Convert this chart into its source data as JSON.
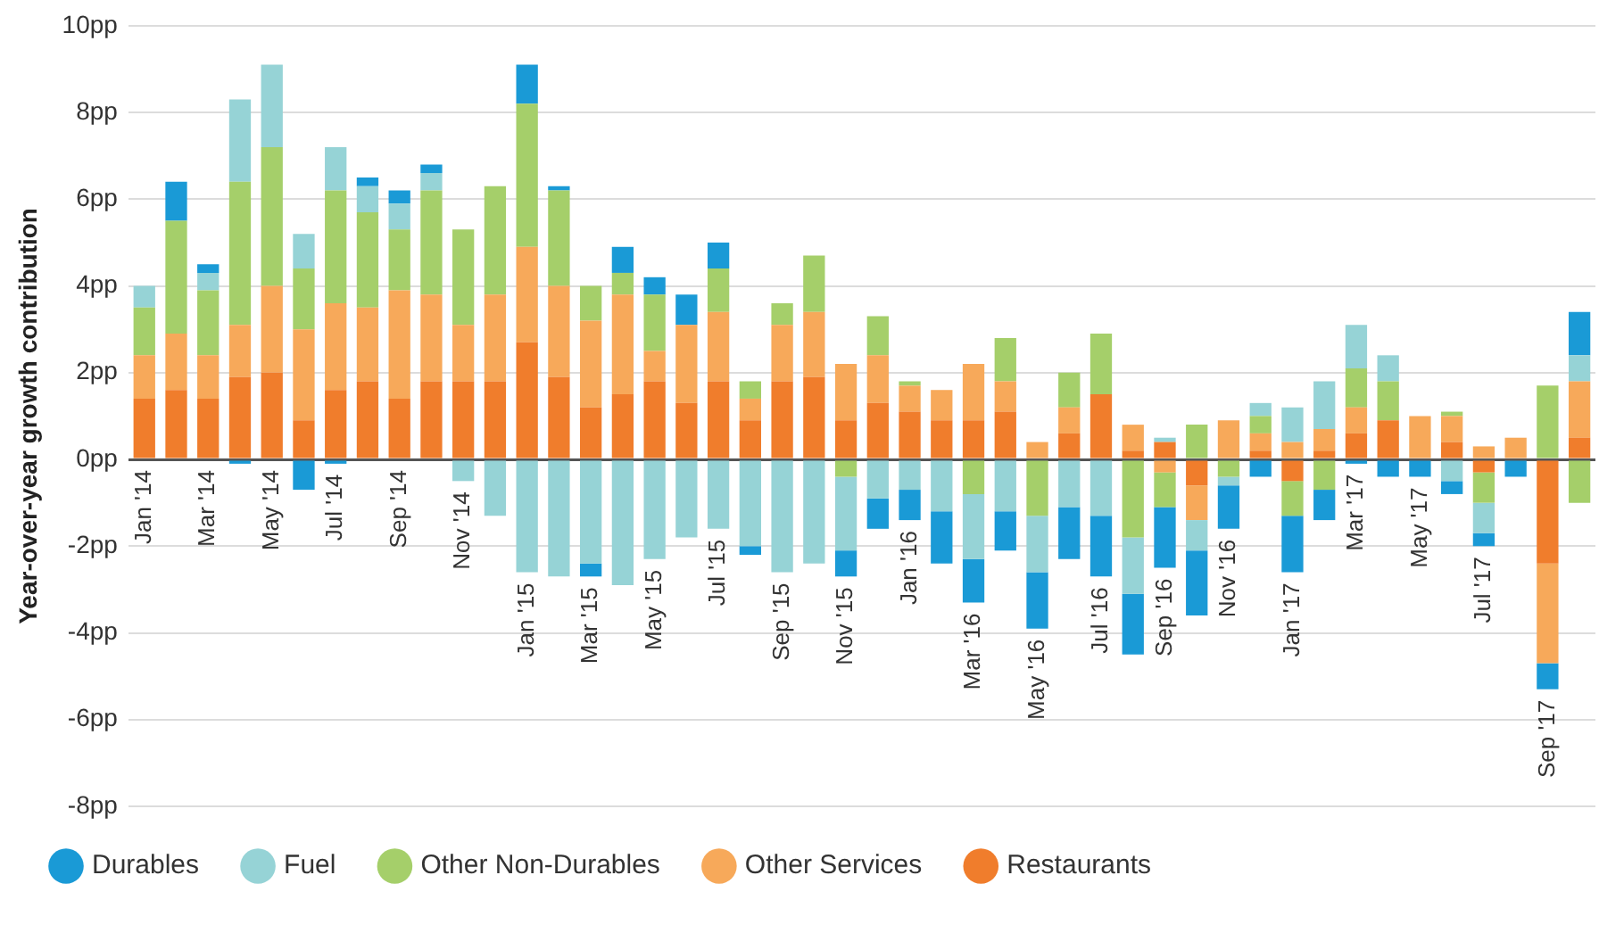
{
  "chart_data": {
    "type": "bar",
    "stacked": true,
    "ylabel": "Year-over-year growth contribution",
    "grid": "y",
    "legend": "bottom",
    "ylim": [
      -8,
      10
    ],
    "yticks": [
      {
        "value": -8,
        "label": "-8pp"
      },
      {
        "value": -6,
        "label": "-6pp"
      },
      {
        "value": -4,
        "label": "-4pp"
      },
      {
        "value": -2,
        "label": "-2pp"
      },
      {
        "value": 0,
        "label": "0pp"
      },
      {
        "value": 2,
        "label": "2pp"
      },
      {
        "value": 4,
        "label": "4pp"
      },
      {
        "value": 6,
        "label": "6pp"
      },
      {
        "value": 8,
        "label": "8pp"
      },
      {
        "value": 10,
        "label": "10pp"
      }
    ],
    "categories": [
      "Jan '14",
      null,
      "Mar '14",
      null,
      "May '14",
      null,
      "Jul '14",
      null,
      "Sep '14",
      null,
      "Nov '14",
      null,
      "Jan '15",
      null,
      "Mar '15",
      null,
      "May '15",
      null,
      "Jul '15",
      null,
      "Sep '15",
      null,
      "Nov '15",
      null,
      "Jan '16",
      null,
      "Mar '16",
      null,
      "May '16",
      null,
      "Jul '16",
      null,
      "Sep '16",
      null,
      "Nov '16",
      null,
      "Jan '17",
      null,
      "Mar '17",
      null,
      "May '17",
      null,
      "Jul '17",
      null,
      "Sep '17",
      null
    ],
    "series": [
      {
        "name": "Restaurants",
        "color": "#f07d2c",
        "values": [
          1.4,
          1.6,
          1.4,
          1.9,
          2.0,
          0.9,
          1.6,
          1.8,
          1.4,
          1.8,
          1.8,
          1.8,
          2.7,
          1.9,
          1.2,
          1.5,
          1.8,
          1.3,
          1.8,
          0.9,
          1.8,
          1.9,
          0.9,
          1.3,
          1.1,
          0.9,
          0.9,
          1.1,
          0,
          0.6,
          1.5,
          0.2,
          0.4,
          -0.6,
          0,
          0.2,
          -0.5,
          0.2,
          0.6,
          0.9,
          0,
          0.4,
          -0.3,
          0,
          -2.4,
          0.5
        ]
      },
      {
        "name": "Other Services",
        "color": "#f7a95a",
        "values": [
          1.0,
          1.3,
          1.0,
          1.2,
          2.0,
          2.1,
          2.0,
          1.7,
          2.5,
          2.0,
          1.3,
          2.0,
          2.2,
          2.1,
          2.0,
          2.3,
          0.7,
          1.8,
          1.6,
          0.5,
          1.3,
          1.5,
          1.3,
          1.1,
          0.6,
          0.7,
          1.3,
          0.7,
          0.4,
          0.6,
          0,
          0.6,
          -0.3,
          -0.8,
          0.9,
          0.4,
          0.4,
          0.5,
          0.6,
          0,
          1.0,
          0.6,
          0.3,
          0.5,
          -2.3,
          1.3
        ]
      },
      {
        "name": "Other Non-Durables",
        "color": "#a5cf6a",
        "values": [
          1.1,
          2.6,
          1.5,
          3.3,
          3.2,
          1.4,
          2.6,
          2.2,
          1.4,
          2.4,
          2.2,
          2.5,
          3.3,
          2.2,
          0.8,
          0.5,
          1.3,
          0,
          1.0,
          0.4,
          0.5,
          1.3,
          -0.4,
          0.9,
          0.1,
          0,
          -0.8,
          1.0,
          -1.3,
          0.8,
          1.4,
          -1.8,
          -0.8,
          0.8,
          -0.4,
          0.4,
          -0.8,
          -0.7,
          0.9,
          0.9,
          0,
          0.1,
          -0.7,
          0,
          1.7,
          -1.0
        ]
      },
      {
        "name": "Fuel",
        "color": "#96d3d6",
        "values": [
          0.5,
          0,
          0.4,
          1.9,
          1.9,
          0.8,
          1.0,
          0.6,
          0.6,
          0.4,
          -0.5,
          -1.3,
          -2.6,
          -2.7,
          -2.4,
          -2.9,
          -2.3,
          -1.8,
          -1.6,
          -2.0,
          -2.6,
          -2.4,
          -1.7,
          -0.9,
          -0.7,
          -1.2,
          -1.5,
          -1.2,
          -1.3,
          -1.1,
          -1.3,
          -1.3,
          0.1,
          -0.7,
          -0.2,
          0.3,
          0.8,
          1.1,
          1.0,
          0.6,
          0,
          -0.5,
          -0.7,
          0,
          0,
          0.6
        ]
      },
      {
        "name": "Durables",
        "color": "#1a9ad6",
        "values": [
          0,
          0.9,
          0.2,
          -0.1,
          0,
          -0.7,
          -0.1,
          0.2,
          0.3,
          0.2,
          0,
          0,
          0.9,
          0.1,
          -0.3,
          0.6,
          0.4,
          0.7,
          0.6,
          -0.2,
          0,
          0,
          -0.6,
          -0.7,
          -0.7,
          -1.2,
          -1.0,
          -0.9,
          -1.3,
          -1.2,
          -1.4,
          -1.4,
          -1.4,
          -1.5,
          -1.0,
          -0.4,
          -1.3,
          -0.7,
          -0.1,
          -0.4,
          -0.4,
          -0.3,
          -0.3,
          -0.4,
          -0.6,
          1.0
        ]
      }
    ]
  }
}
